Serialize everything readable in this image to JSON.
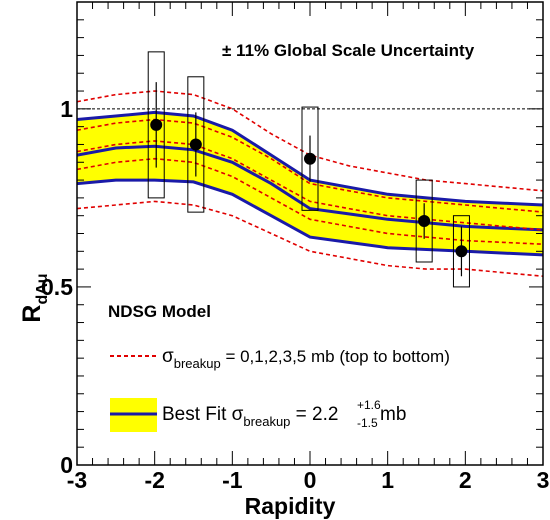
{
  "chart_data": {
    "type": "line",
    "xlabel": "Rapidity",
    "ylabel_main": "R",
    "ylabel_sub": "dAu",
    "xlim": [
      -3,
      3
    ],
    "ylim": [
      0,
      1.3
    ],
    "x_ticks": [
      -3,
      -2,
      -1,
      0,
      1,
      2,
      3
    ],
    "x_tick_labels": [
      "-3",
      "-2",
      "-1",
      "0",
      "1",
      "2",
      "3"
    ],
    "y_ticks": [
      0,
      0.5,
      1
    ],
    "y_tick_labels": [
      "0",
      "0.5",
      "1"
    ],
    "reference_line_y": 1.0,
    "annotations": {
      "global_scale": "± 11% Global Scale Uncertainty",
      "model": "NDSG Model",
      "legend_dashed_prefix": "σ",
      "legend_dashed_sub": "breakup",
      "legend_dashed_suffix": " = 0,1,2,3,5 mb (top to bottom)",
      "legend_fit_prefix": "Best Fit σ",
      "legend_fit_sub": "breakup",
      "legend_fit_value": " = 2.2",
      "legend_fit_err_up": "+1.6",
      "legend_fit_err_down": "-1.5",
      "legend_fit_unit": " mb"
    },
    "colors": {
      "band_fill": "#ffff00",
      "band_edge": "#1a1aa8",
      "dashed": "#e00000",
      "points": "#000000"
    },
    "x_grid": [
      -3.0,
      -2.5,
      -2.0,
      -1.5,
      -1.0,
      -0.5,
      0.0,
      0.5,
      1.0,
      1.5,
      2.0,
      2.5,
      3.0
    ],
    "series": [
      {
        "name": "σ breakup = 0 mb",
        "style": "dashed",
        "values": [
          1.02,
          1.04,
          1.05,
          1.04,
          1.0,
          0.93,
          0.87,
          0.84,
          0.82,
          0.8,
          0.79,
          0.78,
          0.77
        ]
      },
      {
        "name": "σ breakup = 1 mb",
        "style": "dashed",
        "values": [
          0.94,
          0.96,
          0.97,
          0.96,
          0.92,
          0.86,
          0.79,
          0.77,
          0.75,
          0.74,
          0.73,
          0.72,
          0.71
        ]
      },
      {
        "name": "σ breakup = 2 mb",
        "style": "dashed",
        "values": [
          0.88,
          0.9,
          0.91,
          0.9,
          0.86,
          0.8,
          0.74,
          0.72,
          0.7,
          0.69,
          0.68,
          0.67,
          0.66
        ]
      },
      {
        "name": "σ breakup = 3 mb",
        "style": "dashed",
        "values": [
          0.83,
          0.85,
          0.86,
          0.85,
          0.81,
          0.75,
          0.69,
          0.67,
          0.65,
          0.64,
          0.63,
          0.625,
          0.62
        ]
      },
      {
        "name": "σ breakup = 5 mb",
        "style": "dashed",
        "values": [
          0.72,
          0.73,
          0.74,
          0.73,
          0.7,
          0.65,
          0.6,
          0.58,
          0.56,
          0.55,
          0.55,
          0.54,
          0.53
        ]
      }
    ],
    "band": {
      "upper": [
        0.97,
        0.98,
        0.99,
        0.98,
        0.94,
        0.87,
        0.8,
        0.78,
        0.76,
        0.75,
        0.74,
        0.735,
        0.73
      ],
      "central": [
        0.87,
        0.89,
        0.895,
        0.885,
        0.85,
        0.79,
        0.72,
        0.705,
        0.69,
        0.68,
        0.67,
        0.665,
        0.66
      ],
      "lower": [
        0.79,
        0.8,
        0.8,
        0.795,
        0.76,
        0.7,
        0.64,
        0.625,
        0.61,
        0.605,
        0.6,
        0.595,
        0.59
      ]
    },
    "points": [
      {
        "x": -1.98,
        "y": 0.955,
        "stat_err": 0.12,
        "sys_err": 0.205
      },
      {
        "x": -1.47,
        "y": 0.9,
        "stat_err": 0.09,
        "sys_err": 0.19
      },
      {
        "x": 0.0,
        "y": 0.86,
        "stat_err": 0.065,
        "sys_err": 0.145
      },
      {
        "x": 1.47,
        "y": 0.685,
        "stat_err": 0.05,
        "sys_err": 0.115
      },
      {
        "x": 1.95,
        "y": 0.6,
        "stat_err": 0.07,
        "sys_err": 0.1
      }
    ]
  }
}
